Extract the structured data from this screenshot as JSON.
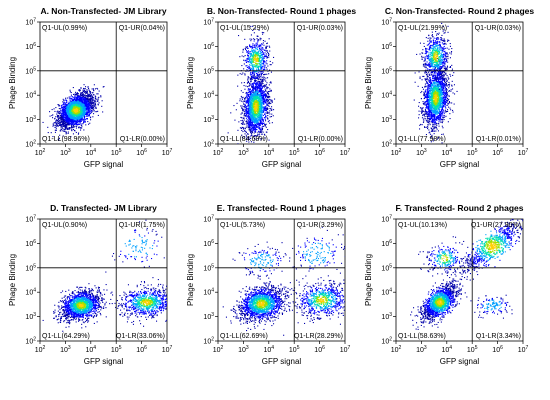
{
  "chart_data": [
    {
      "type": "scatter",
      "title": "A. Non-Transfected- JM Library",
      "xlabel": "GFP signal",
      "ylabel": "Phage Binding",
      "xscale": "log",
      "yscale": "log",
      "xlim": [
        100,
        10000000
      ],
      "ylim": [
        100,
        10000000
      ],
      "gates": {
        "x": 100000,
        "y": 100000
      },
      "xticks": [
        "10^2",
        "10^3",
        "10^4",
        "10^5",
        "10^6",
        "10^7"
      ],
      "yticks": [
        "10^2",
        "10^3",
        "10^4",
        "10^5",
        "10^6",
        "10^7"
      ],
      "quadrants": {
        "UL": "Q1-UL(0.99%)",
        "UR": "Q1-UR(0.04%)",
        "LL": "Q1-LL(98.96%)",
        "LR": "Q1-LR(0.00%)"
      },
      "populations": [
        {
          "cx": 2500,
          "cy": 2500,
          "spread_x": 0.35,
          "spread_y": 0.35,
          "rho": 0.5,
          "share": 0.99
        }
      ]
    },
    {
      "type": "scatter",
      "title": "B. Non-Transfected- Round 1 phages",
      "xlabel": "GFP signal",
      "ylabel": "Phage Binding",
      "xscale": "log",
      "yscale": "log",
      "xlim": [
        100,
        10000000
      ],
      "ylim": [
        100,
        10000000
      ],
      "gates": {
        "x": 100000,
        "y": 100000
      },
      "xticks": [
        "10^2",
        "10^3",
        "10^4",
        "10^5",
        "10^6",
        "10^7"
      ],
      "yticks": [
        "10^2",
        "10^3",
        "10^4",
        "10^5",
        "10^6",
        "10^7"
      ],
      "quadrants": {
        "UL": "Q1-UL(15.29%)",
        "UR": "Q1-UR(0.03%)",
        "LL": "Q1-LL(84.68%)",
        "LR": "Q1-LR(0.00%)"
      },
      "populations": [
        {
          "cx": 3000,
          "cy": 3500,
          "spread_x": 0.25,
          "spread_y": 0.6,
          "rho": 0.2,
          "share": 0.72
        },
        {
          "cx": 3000,
          "cy": 300000,
          "spread_x": 0.25,
          "spread_y": 0.45,
          "rho": 0.1,
          "share": 0.22
        }
      ]
    },
    {
      "type": "scatter",
      "title": "C. Non-Transfected- Round 2 phages",
      "xlabel": "GFP signal",
      "ylabel": "Phage Binding",
      "xscale": "log",
      "yscale": "log",
      "xlim": [
        100,
        10000000
      ],
      "ylim": [
        100,
        10000000
      ],
      "gates": {
        "x": 100000,
        "y": 100000
      },
      "xticks": [
        "10^2",
        "10^3",
        "10^4",
        "10^5",
        "10^6",
        "10^7"
      ],
      "yticks": [
        "10^2",
        "10^3",
        "10^4",
        "10^5",
        "10^6",
        "10^7"
      ],
      "quadrants": {
        "UL": "Q1-UL(21.99%)",
        "UR": "Q1-UR(0.03%)",
        "LL": "Q1-LL(77.98%)",
        "LR": "Q1-LR(0.01%)"
      },
      "populations": [
        {
          "cx": 3500,
          "cy": 8000,
          "spread_x": 0.25,
          "spread_y": 0.6,
          "rho": 0.2,
          "share": 0.7
        },
        {
          "cx": 3500,
          "cy": 400000,
          "spread_x": 0.25,
          "spread_y": 0.45,
          "rho": 0.1,
          "share": 0.25
        }
      ]
    },
    {
      "type": "scatter",
      "title": "D. Transfected- JM Library",
      "xlabel": "GFP signal",
      "ylabel": "Phage Binding",
      "xscale": "log",
      "yscale": "log",
      "xlim": [
        100,
        10000000
      ],
      "ylim": [
        100,
        10000000
      ],
      "gates": {
        "x": 100000,
        "y": 100000
      },
      "xticks": [
        "10^2",
        "10^3",
        "10^4",
        "10^5",
        "10^6",
        "10^7"
      ],
      "yticks": [
        "10^2",
        "10^3",
        "10^4",
        "10^5",
        "10^6",
        "10^7"
      ],
      "quadrants": {
        "UL": "Q1-UL(0.90%)",
        "UR": "Q1-UR(1.75%)",
        "LL": "Q1-LL(64.29%)",
        "LR": "Q1-LR(33.06%)"
      },
      "populations": [
        {
          "cx": 4000,
          "cy": 3000,
          "spread_x": 0.4,
          "spread_y": 0.3,
          "rho": 0.3,
          "share": 0.62
        },
        {
          "cx": 1500000,
          "cy": 4000,
          "spread_x": 0.5,
          "spread_y": 0.3,
          "rho": 0.2,
          "share": 0.32
        },
        {
          "cx": 700000,
          "cy": 800000,
          "spread_x": 0.5,
          "spread_y": 0.4,
          "rho": 0.2,
          "share": 0.04
        }
      ]
    },
    {
      "type": "scatter",
      "title": "E. Transfected- Round 1 phages",
      "xlabel": "GFP signal",
      "ylabel": "Phage Binding",
      "xscale": "log",
      "yscale": "log",
      "xlim": [
        100,
        10000000
      ],
      "ylim": [
        100,
        10000000
      ],
      "gates": {
        "x": 100000,
        "y": 100000
      },
      "xticks": [
        "10^2",
        "10^3",
        "10^4",
        "10^5",
        "10^6",
        "10^7"
      ],
      "yticks": [
        "10^2",
        "10^3",
        "10^4",
        "10^5",
        "10^6",
        "10^7"
      ],
      "quadrants": {
        "UL": "Q1-UL(5.73%)",
        "UR": "Q1-UR(3.29%)",
        "LL": "Q1-LL(62.69%)",
        "LR": "Q1-LR(28.29%)"
      },
      "populations": [
        {
          "cx": 5000,
          "cy": 3500,
          "spread_x": 0.45,
          "spread_y": 0.35,
          "rho": 0.3,
          "share": 0.6
        },
        {
          "cx": 1200000,
          "cy": 5000,
          "spread_x": 0.5,
          "spread_y": 0.35,
          "rho": 0.2,
          "share": 0.28
        },
        {
          "cx": 5000,
          "cy": 200000,
          "spread_x": 0.45,
          "spread_y": 0.3,
          "rho": 0.1,
          "share": 0.06
        },
        {
          "cx": 800000,
          "cy": 400000,
          "spread_x": 0.5,
          "spread_y": 0.4,
          "rho": 0.2,
          "share": 0.06
        }
      ]
    },
    {
      "type": "scatter",
      "title": "F. Transfected- Round 2 phages",
      "xlabel": "GFP signal",
      "ylabel": "Phage Binding",
      "xscale": "log",
      "yscale": "log",
      "xlim": [
        100,
        10000000
      ],
      "ylim": [
        100,
        10000000
      ],
      "gates": {
        "x": 100000,
        "y": 100000
      },
      "xticks": [
        "10^2",
        "10^3",
        "10^4",
        "10^5",
        "10^6",
        "10^7"
      ],
      "yticks": [
        "10^2",
        "10^3",
        "10^4",
        "10^5",
        "10^6",
        "10^7"
      ],
      "quadrants": {
        "UL": "Q1-UL(10.13%)",
        "UR": "Q1-UR(27.90%)",
        "LL": "Q1-LL(58.63%)",
        "LR": "Q1-LR(3.34%)"
      },
      "populations": [
        {
          "cx": 5000,
          "cy": 4000,
          "spread_x": 0.35,
          "spread_y": 0.35,
          "rho": 0.6,
          "share": 0.55
        },
        {
          "cx": 600000,
          "cy": 800000,
          "spread_x": 0.6,
          "spread_y": 0.55,
          "rho": 0.85,
          "share": 0.3
        },
        {
          "cx": 8000,
          "cy": 250000,
          "spread_x": 0.35,
          "spread_y": 0.3,
          "rho": 0.2,
          "share": 0.1
        },
        {
          "cx": 600000,
          "cy": 3000,
          "spread_x": 0.35,
          "spread_y": 0.2,
          "rho": 0.1,
          "share": 0.05
        }
      ]
    }
  ],
  "style": {
    "dot_palette": [
      "#0000aa",
      "#0000ff",
      "#00a0ff",
      "#00e0b0",
      "#a0e000",
      "#ffd000"
    ],
    "gate_line_color": "#000000",
    "axis_color": "#000000",
    "text_color": "#000000"
  }
}
